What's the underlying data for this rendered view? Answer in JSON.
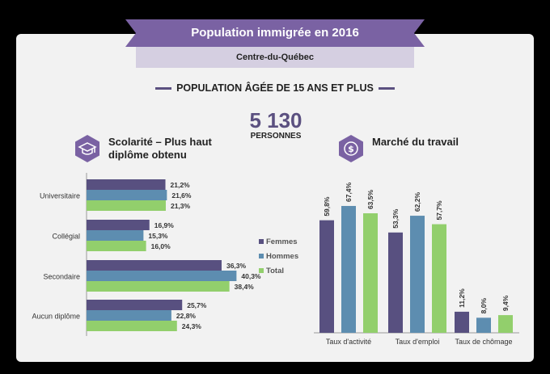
{
  "header": {
    "title": "Population immigrée en 2016",
    "region": "Centre-du-Québec",
    "section": "POPULATION ÂGÉE DE 15 ANS ET PLUS",
    "population_value": "5 130",
    "population_label": "PERSONNES"
  },
  "colors": {
    "femmes": "#585080",
    "hommes": "#5d8db0",
    "total": "#92cf6c",
    "accent": "#7a62a3"
  },
  "icons": {
    "education": "graduation-cap-icon",
    "labour": "dollar-icon"
  },
  "chart_data": [
    {
      "type": "bar",
      "orientation": "horizontal",
      "title": "Scolarité – Plus haut diplôme obtenu",
      "categories": [
        "Universitaire",
        "Collégial",
        "Secondaire",
        "Aucun diplôme"
      ],
      "series": [
        {
          "name": "Femmes",
          "values": [
            21.2,
            16.9,
            36.3,
            25.7
          ],
          "labels": [
            "21,2%",
            "16,9%",
            "36,3%",
            "25,7%"
          ]
        },
        {
          "name": "Hommes",
          "values": [
            21.6,
            15.3,
            40.3,
            22.8
          ],
          "labels": [
            "21,6%",
            "15,3%",
            "40,3%",
            "22,8%"
          ]
        },
        {
          "name": "Total",
          "values": [
            21.3,
            16.0,
            38.4,
            24.3
          ],
          "labels": [
            "21,3%",
            "16,0%",
            "38,4%",
            "24,3%"
          ]
        }
      ],
      "legend": "right",
      "grid": false
    },
    {
      "type": "bar",
      "orientation": "vertical",
      "title": "Marché du travail",
      "categories": [
        "Taux d'activité",
        "Taux d'emploi",
        "Taux de chômage"
      ],
      "series": [
        {
          "name": "Femmes",
          "values": [
            59.8,
            53.3,
            11.2
          ],
          "labels": [
            "59,8%",
            "53,3%",
            "11,2%"
          ]
        },
        {
          "name": "Hommes",
          "values": [
            67.4,
            62.2,
            8.0
          ],
          "labels": [
            "67,4%",
            "62,2%",
            "8,0%"
          ]
        },
        {
          "name": "Total",
          "values": [
            63.5,
            57.7,
            9.4
          ],
          "labels": [
            "63,5%",
            "57,7%",
            "9,4%"
          ]
        }
      ],
      "grid": false
    }
  ]
}
